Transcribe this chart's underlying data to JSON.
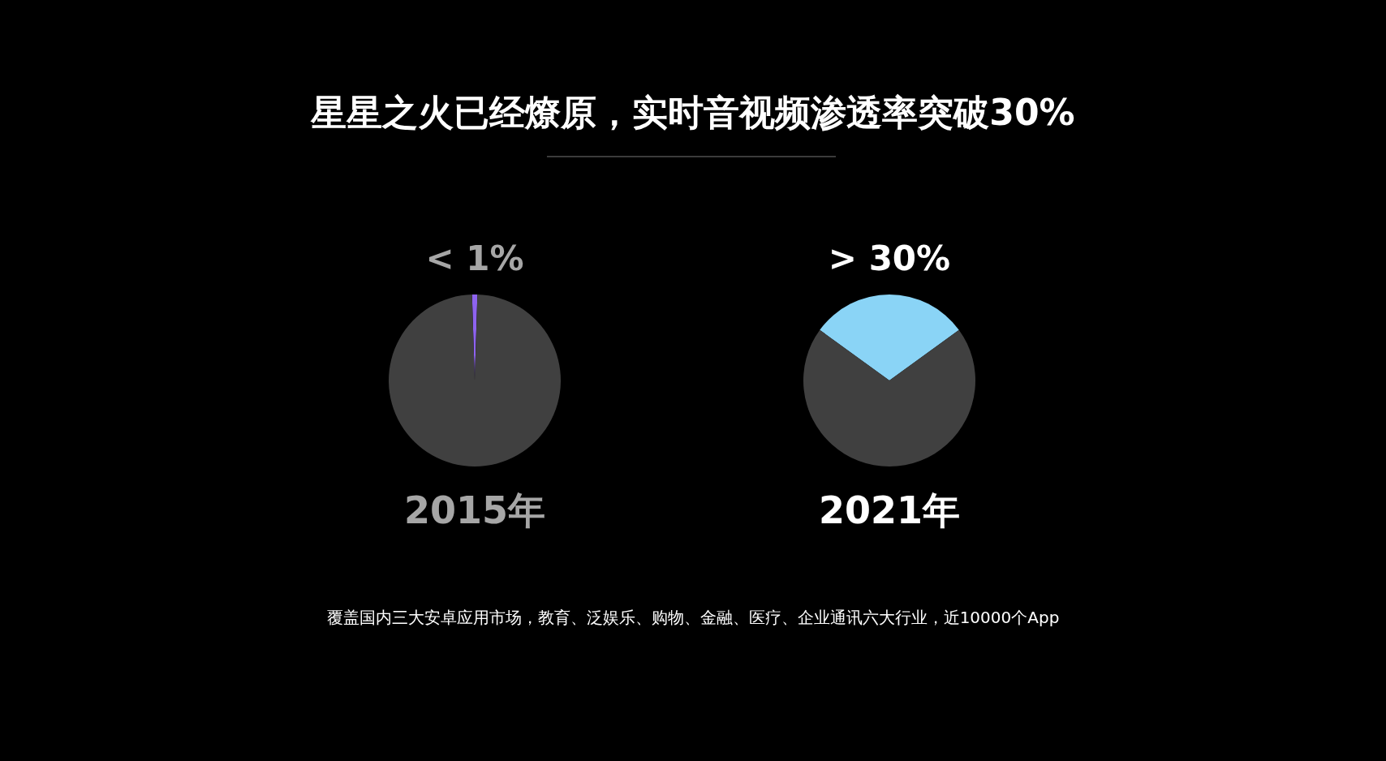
{
  "chart_data": [
    {
      "type": "other",
      "title": "星星之火已经燎原，实时音视频渗透率突破30%",
      "annotations": [
        "覆盖国内三大安卓应用市场，教育、泛娱乐、购物、金融、医疗、企业通讯六大行业，近10000个App"
      ]
    },
    {
      "type": "pie",
      "title": "2015年",
      "annotations": [
        "< 1%"
      ],
      "categories": [
        null,
        null
      ],
      "values": [
        1,
        99
      ],
      "colors": [
        "#8e63f0",
        "#404040"
      ]
    },
    {
      "type": "pie",
      "title": "2021年",
      "annotations": [
        "> 30%"
      ],
      "categories": [
        null,
        null
      ],
      "values": [
        30,
        70
      ],
      "colors": [
        "#8ad4f6",
        "#404040"
      ]
    }
  ]
}
